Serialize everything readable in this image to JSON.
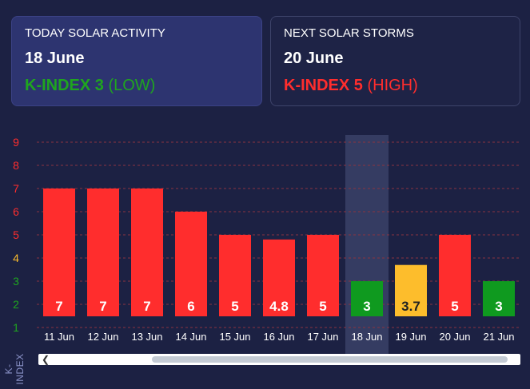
{
  "cards": {
    "today": {
      "title": "TODAY SOLAR ACTIVITY",
      "date": "18 June",
      "k_label": "K-INDEX 3",
      "k_level": "(LOW)",
      "color": "#1fa51f"
    },
    "next": {
      "title": "NEXT SOLAR STORMS",
      "date": "20 June",
      "k_label": "K-INDEX 5",
      "k_level": "(HIGH)",
      "color": "#ff2d2d"
    }
  },
  "chart_data": {
    "type": "bar",
    "ylabel": "K-INDEX",
    "ylim": [
      1,
      9
    ],
    "yticks": [
      "1",
      "2",
      "3",
      "4",
      "5",
      "6",
      "7",
      "8",
      "9"
    ],
    "ytick_colors": [
      "#1fa51f",
      "#1fa51f",
      "#1fa51f",
      "#fdbd2c",
      "#ff2d2d",
      "#ff2d2d",
      "#ff2d2d",
      "#ff2d2d",
      "#ff2d2d"
    ],
    "categories": [
      "11 Jun",
      "12 Jun",
      "13 Jun",
      "14 Jun",
      "15 Jun",
      "16 Jun",
      "17 Jun",
      "18 Jun",
      "19 Jun",
      "20 Jun",
      "21 Jun"
    ],
    "values": [
      7,
      7,
      7,
      6,
      5,
      4.8,
      5,
      3,
      3.7,
      5,
      3
    ],
    "labels": [
      "7",
      "7",
      "7",
      "6",
      "5",
      "4.8",
      "5",
      "3",
      "3.7",
      "5",
      "3"
    ],
    "bar_colors": [
      "#ff2d2d",
      "#ff2d2d",
      "#ff2d2d",
      "#ff2d2d",
      "#ff2d2d",
      "#ff2d2d",
      "#ff2d2d",
      "#0f9a1f",
      "#fdbd2c",
      "#ff2d2d",
      "#0f9a1f"
    ],
    "label_colors": [
      "#ffffff",
      "#ffffff",
      "#ffffff",
      "#ffffff",
      "#ffffff",
      "#ffffff",
      "#ffffff",
      "#ffffff",
      "#222222",
      "#ffffff",
      "#ffffff"
    ],
    "highlighted_category": "18 Jun",
    "grid": true
  }
}
